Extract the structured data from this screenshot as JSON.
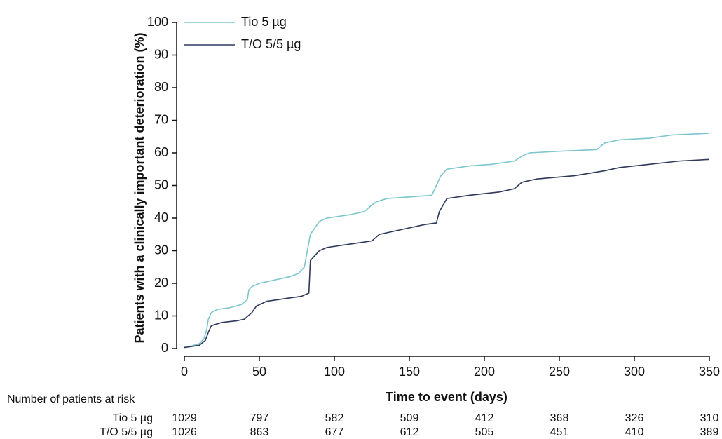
{
  "chart_data": {
    "type": "line",
    "y_label": "Patients with a clinically important deterioration (%)",
    "x_label": "Time to event (days)",
    "xlim": [
      0,
      350
    ],
    "xticks": [
      0,
      50,
      100,
      150,
      200,
      250,
      300,
      350
    ],
    "ylim": [
      0,
      100
    ],
    "yticks": [
      0,
      10,
      20,
      30,
      40,
      50,
      60,
      70,
      80,
      90,
      100
    ],
    "legend": "upper left",
    "series": [
      {
        "name": "Tio 5 µg",
        "color": "#7cc6cd",
        "x": [
          0,
          5,
          10,
          13,
          15,
          16,
          18,
          22,
          30,
          38,
          42,
          43,
          45,
          50,
          60,
          70,
          76,
          80,
          82,
          84,
          87,
          90,
          95,
          110,
          120,
          125,
          128,
          135,
          150,
          165,
          168,
          171,
          175,
          190,
          205,
          220,
          225,
          230,
          250,
          275,
          280,
          290,
          310,
          325,
          350
        ],
        "values": [
          0.5,
          0.8,
          1.5,
          3,
          6,
          9,
          11,
          12,
          12.5,
          13.5,
          15,
          18,
          19,
          20,
          21,
          22,
          23,
          25,
          30,
          35,
          37,
          39,
          40,
          41,
          42,
          44,
          45,
          46,
          46.5,
          47,
          50,
          53,
          55,
          56,
          56.5,
          57.5,
          59,
          60,
          60.5,
          61,
          63,
          64,
          64.5,
          65.5,
          66
        ]
      },
      {
        "name": "T/O 5/5 µg",
        "color": "#2e3a5c",
        "x": [
          0,
          10,
          14,
          16,
          18,
          25,
          35,
          40,
          45,
          48,
          55,
          70,
          78,
          83,
          84,
          86,
          90,
          95,
          110,
          125,
          130,
          145,
          160,
          168,
          170,
          175,
          190,
          210,
          220,
          225,
          235,
          260,
          280,
          290,
          310,
          330,
          350
        ],
        "values": [
          0.3,
          1,
          2.5,
          5,
          7,
          8,
          8.5,
          9,
          11,
          13,
          14.5,
          15.5,
          16,
          17,
          27,
          28,
          30,
          31,
          32,
          33,
          35,
          36.5,
          38,
          38.5,
          42,
          46,
          47,
          48,
          49,
          51,
          52,
          53,
          54.5,
          55.5,
          56.5,
          57.5,
          58
        ]
      }
    ]
  },
  "risk_table": {
    "title": "Number of patients at risk",
    "rows": [
      {
        "label": "Tio 5 µg",
        "values": [
          1029,
          797,
          582,
          509,
          412,
          368,
          326,
          310
        ]
      },
      {
        "label": "T/O 5/5 µg",
        "values": [
          1026,
          863,
          677,
          612,
          505,
          451,
          410,
          389
        ]
      }
    ]
  }
}
